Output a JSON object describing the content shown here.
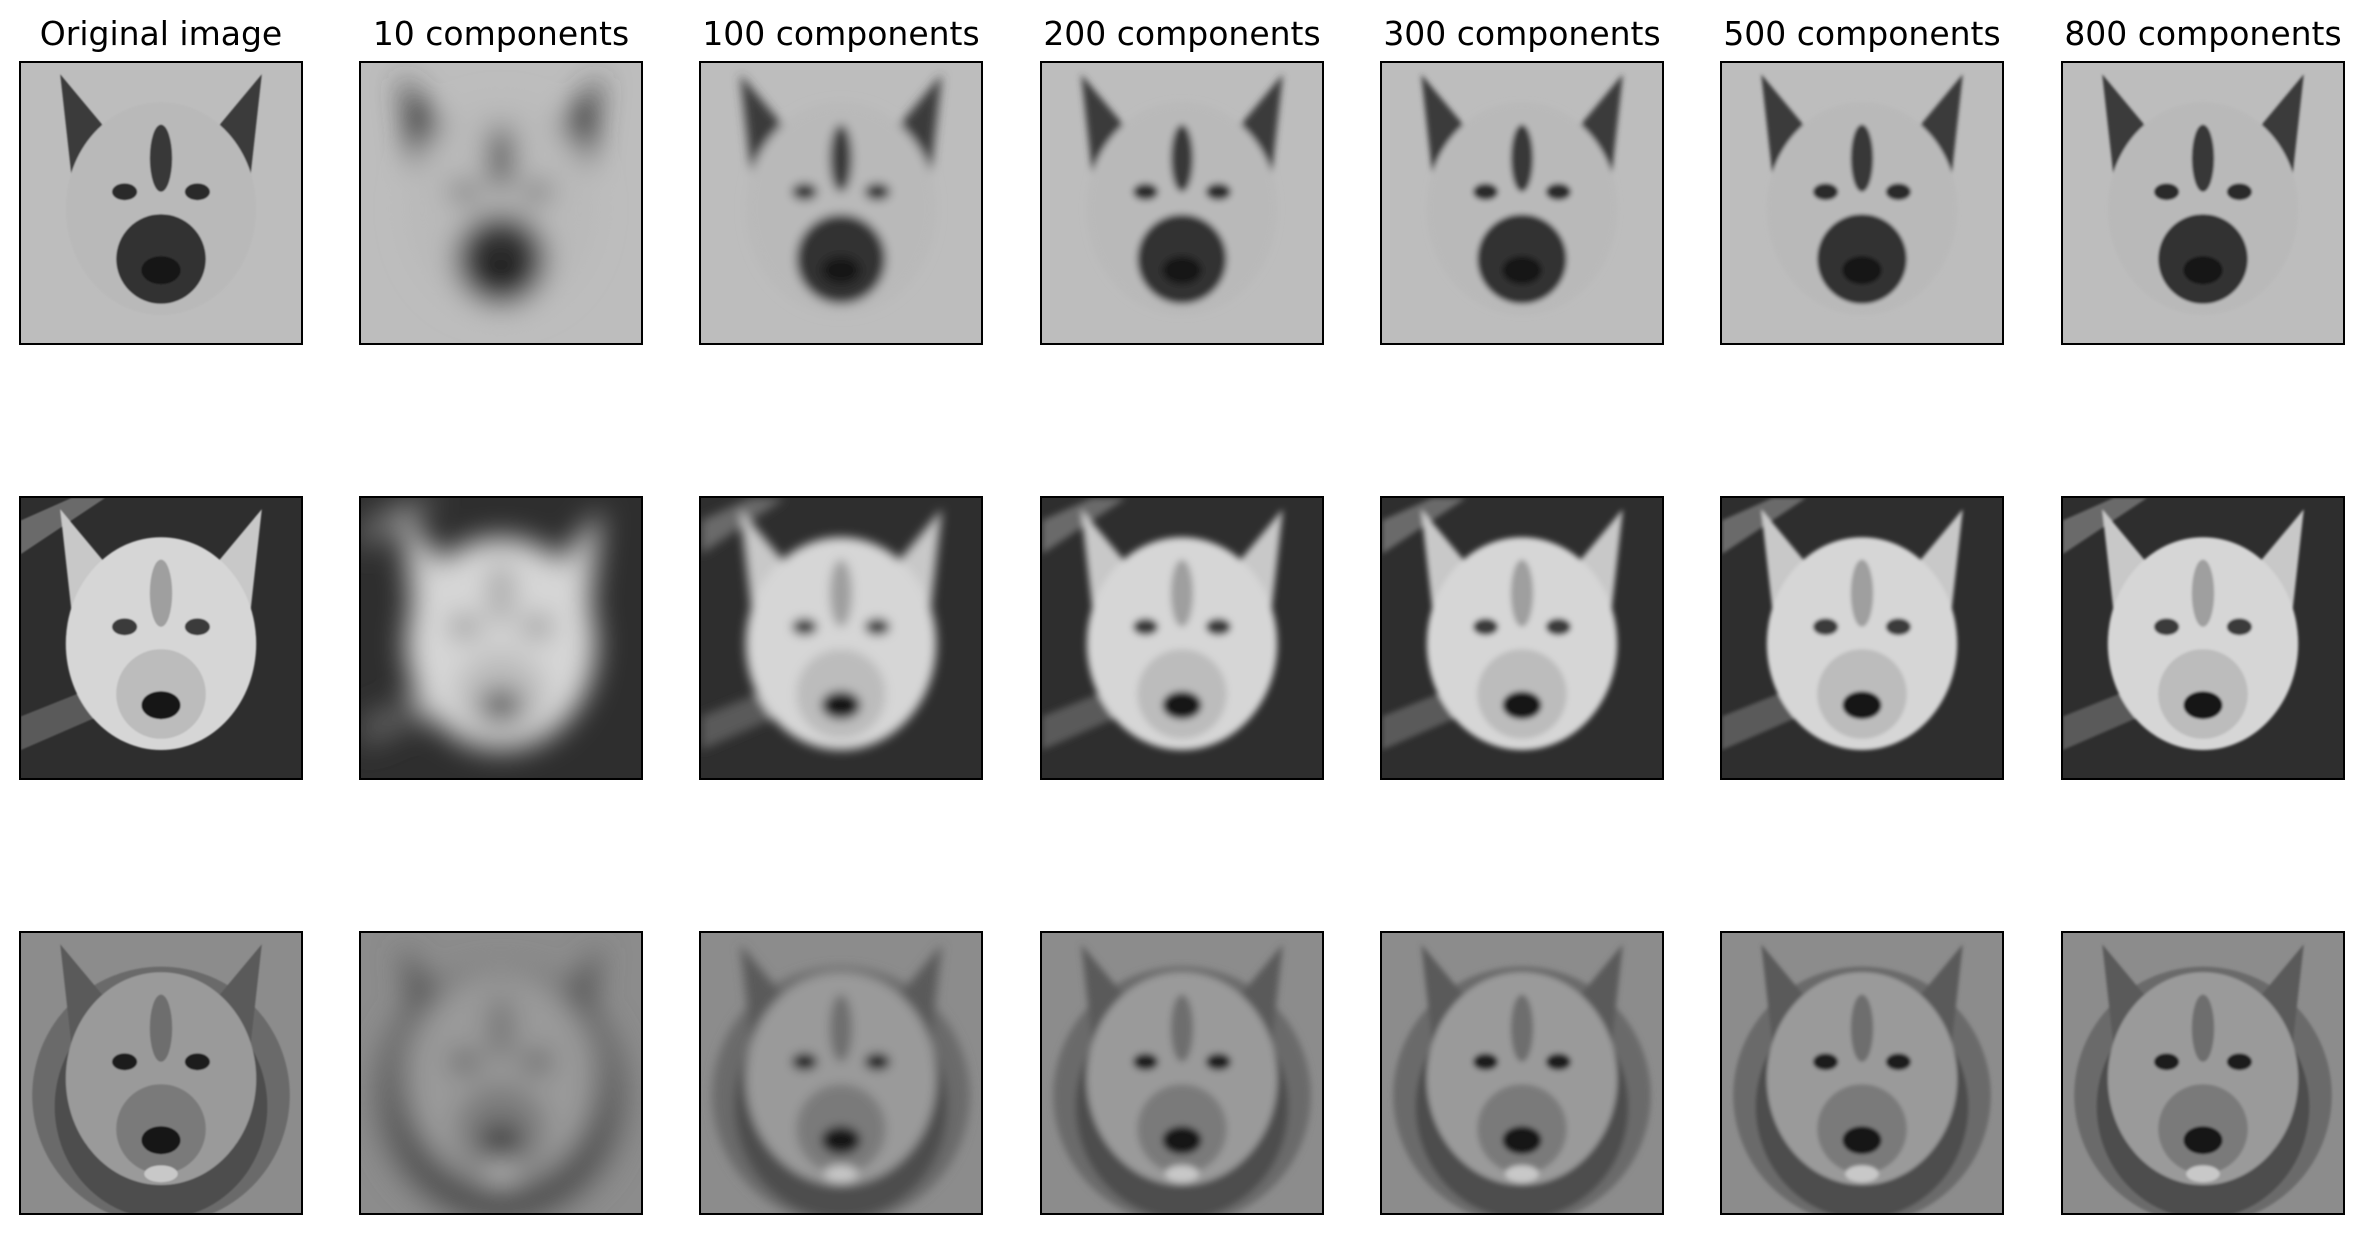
{
  "figure": {
    "columns": [
      {
        "title": "Original image",
        "blur": 0.8
      },
      {
        "title": "10 components",
        "blur": 14
      },
      {
        "title": "100 components",
        "blur": 5
      },
      {
        "title": "200 components",
        "blur": 3.5
      },
      {
        "title": "300 components",
        "blur": 2.8
      },
      {
        "title": "500 components",
        "blur": 1.8
      },
      {
        "title": "800 components",
        "blur": 1.3
      }
    ],
    "rows": [
      {
        "subject": "dog face",
        "icon": "dog-face-icon",
        "bg": "#bdbdbd",
        "fur": "#b9b9b9",
        "ears": "#3a3a3a",
        "muzzle": "#333333",
        "mark": "#2a2a2a"
      },
      {
        "subject": "wolf face",
        "icon": "wolf-face-icon",
        "bg": "#2e2e2e",
        "fur": "#d6d6d6",
        "ears": "#c8c8c8",
        "muzzle": "#bcbcbc",
        "mark": "#3a3a3a"
      },
      {
        "subject": "lion face",
        "icon": "lion-face-icon",
        "bg": "#8c8c8c",
        "fur": "#9a9a9a",
        "ears": "#5a5a5a",
        "muzzle": "#7a7a7a",
        "mark": "#1e1e1e"
      }
    ]
  }
}
